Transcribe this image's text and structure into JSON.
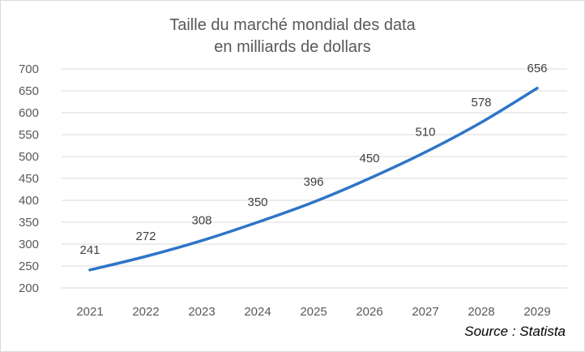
{
  "chart_data": {
    "type": "line",
    "title_line1": "Taille du marché mondial des data",
    "title_line2": "en milliards de dollars",
    "categories": [
      "2021",
      "2022",
      "2023",
      "2024",
      "2025",
      "2026",
      "2027",
      "2028",
      "2029"
    ],
    "series": [
      {
        "values": [
          241,
          272,
          308,
          350,
          396,
          450,
          510,
          578,
          656
        ],
        "color": "#2e75c8"
      }
    ],
    "y_ticks": [
      "700",
      "650",
      "600",
      "550",
      "500",
      "450",
      "400",
      "350",
      "300",
      "250",
      "200"
    ],
    "ylim": [
      200,
      700
    ],
    "grid": true,
    "grid_color": "#d9d9d9",
    "data_labels": true
  },
  "source": "Source : Statista"
}
